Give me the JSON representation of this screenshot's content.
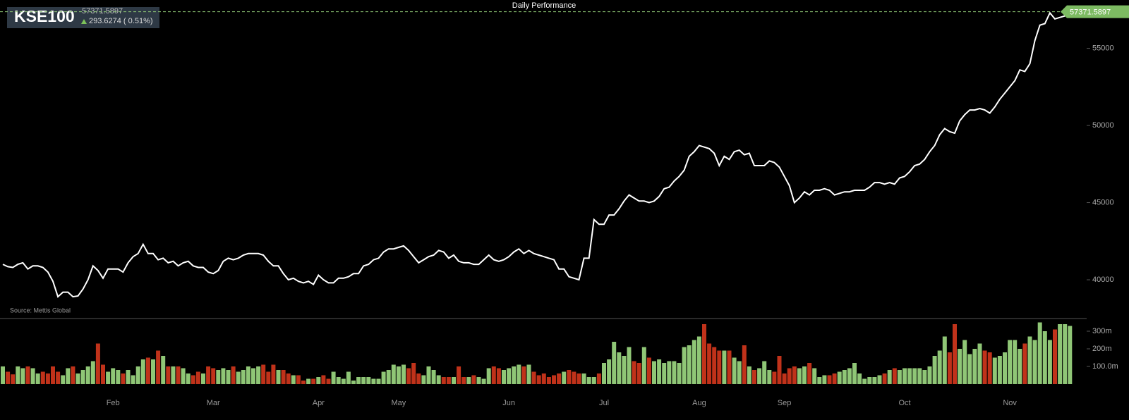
{
  "chart_data": {
    "type": "line",
    "title": "Daily Performance",
    "change_label": "293.6274 ( 0.51%)",
    "source": "Source: Mettis Global",
    "categories": [
      null,
      null,
      null,
      null,
      null,
      null,
      null,
      null,
      null,
      null,
      null,
      null,
      null,
      null,
      null,
      null,
      null,
      null,
      null,
      null,
      null,
      null,
      "Feb",
      null,
      null,
      null,
      null,
      null,
      null,
      null,
      null,
      null,
      null,
      null,
      null,
      null,
      null,
      null,
      null,
      null,
      null,
      null,
      "Mar",
      null,
      null,
      null,
      null,
      null,
      null,
      null,
      null,
      null,
      null,
      null,
      null,
      null,
      null,
      null,
      null,
      null,
      null,
      null,
      null,
      "Apr",
      null,
      null,
      null,
      null,
      null,
      null,
      null,
      null,
      null,
      null,
      null,
      null,
      null,
      null,
      null,
      "May",
      null,
      null,
      null,
      null,
      null,
      null,
      null,
      null,
      null,
      null,
      null,
      null,
      null,
      null,
      null,
      null,
      null,
      null,
      null,
      null,
      null,
      "Jun",
      null,
      null,
      null,
      null,
      null,
      null,
      null,
      null,
      null,
      null,
      null,
      null,
      null,
      null,
      null,
      null,
      null,
      null,
      "Jul",
      null,
      null,
      null,
      null,
      null,
      null,
      null,
      null,
      null,
      null,
      null,
      null,
      null,
      null,
      null,
      null,
      null,
      null,
      "Aug",
      null,
      null,
      null,
      null,
      null,
      null,
      null,
      null,
      null,
      null,
      null,
      null,
      null,
      null,
      null,
      null,
      "Sep",
      null,
      null,
      null,
      null,
      null,
      null,
      null,
      null,
      null,
      null,
      null,
      null,
      null,
      null,
      null,
      null,
      null,
      null,
      null,
      null,
      null,
      null,
      null,
      "Oct",
      null,
      null,
      null,
      null,
      null,
      null,
      null,
      null,
      null,
      null,
      null,
      null,
      null,
      null,
      null,
      null,
      null,
      null,
      null,
      null,
      "Nov",
      null,
      null,
      null,
      null,
      null,
      null,
      null,
      null,
      null,
      null,
      null,
      null
    ],
    "series": [
      {
        "name": "KSE100",
        "color": "#ffffff",
        "values": [
          41000,
          40850,
          40800,
          41000,
          41100,
          40700,
          40900,
          40900,
          40800,
          40500,
          39900,
          38900,
          39200,
          39200,
          38900,
          38950,
          39400,
          40000,
          40900,
          40600,
          40100,
          40700,
          40700,
          40700,
          40500,
          41100,
          41500,
          41700,
          42300,
          41700,
          41700,
          41300,
          41400,
          41100,
          41200,
          40900,
          41100,
          41200,
          40900,
          40800,
          40800,
          40500,
          40400,
          40600,
          41200,
          41400,
          41300,
          41400,
          41600,
          41700,
          41700,
          41700,
          41600,
          41200,
          40900,
          40900,
          40400,
          40000,
          40100,
          39900,
          39800,
          39900,
          39700,
          40300,
          40000,
          39800,
          39800,
          40100,
          40100,
          40200,
          40400,
          40400,
          40900,
          41000,
          41300,
          41400,
          41800,
          42000,
          42000,
          42100,
          42200,
          41900,
          41500,
          41100,
          41300,
          41500,
          41600,
          41900,
          41800,
          41400,
          41600,
          41200,
          41100,
          41100,
          41000,
          41000,
          41300,
          41600,
          41300,
          41200,
          41300,
          41500,
          41800,
          42000,
          41700,
          41900,
          41700,
          41600,
          41500,
          41400,
          41300,
          40700,
          40700,
          40200,
          40100,
          40000,
          41400,
          41400,
          43900,
          43600,
          43600,
          44200,
          44200,
          44600,
          45100,
          45500,
          45300,
          45100,
          45100,
          45000,
          45100,
          45400,
          45900,
          46000,
          46400,
          46700,
          47100,
          48000,
          48300,
          48700,
          48600,
          48500,
          48200,
          47400,
          48000,
          47800,
          48300,
          48400,
          48100,
          48200,
          47400,
          47400,
          47400,
          47700,
          47600,
          47300,
          46700,
          46100,
          45000,
          45300,
          45700,
          45500,
          45800,
          45800,
          45900,
          45800,
          45500,
          45600,
          45700,
          45700,
          45800,
          45800,
          45800,
          46000,
          46300,
          46300,
          46200,
          46300,
          46200,
          46600,
          46700,
          47000,
          47400,
          47500,
          47800,
          48300,
          48700,
          49400,
          49800,
          49600,
          49500,
          50300,
          50700,
          51000,
          51000,
          51100,
          51000,
          50800,
          51200,
          51700,
          52100,
          52500,
          52900,
          53600,
          53500,
          54000,
          55500,
          56500,
          56600,
          57300,
          56900,
          57000,
          57100,
          57371.5897
        ]
      }
    ],
    "ylim": [
      37490,
      58130
    ],
    "yticks": [
      40000,
      45000,
      50000,
      55000
    ],
    "volume": {
      "up_color": "#8fc676",
      "down_color": "#c0321a",
      "ylim": [
        0,
        372
      ],
      "yticks": [
        {
          "value": 100,
          "label": "100.0m"
        },
        {
          "value": 200,
          "label": "200m"
        },
        {
          "value": 300,
          "label": "300m"
        }
      ],
      "values": [
        100,
        70,
        55,
        100,
        90,
        100,
        90,
        60,
        70,
        60,
        100,
        70,
        50,
        90,
        100,
        60,
        80,
        100,
        130,
        230,
        110,
        70,
        90,
        80,
        60,
        80,
        50,
        100,
        140,
        150,
        140,
        190,
        160,
        100,
        100,
        100,
        90,
        60,
        50,
        70,
        60,
        100,
        90,
        80,
        90,
        80,
        100,
        70,
        80,
        100,
        90,
        100,
        110,
        70,
        110,
        80,
        80,
        60,
        50,
        50,
        20,
        30,
        30,
        40,
        50,
        30,
        70,
        40,
        30,
        70,
        20,
        40,
        40,
        40,
        30,
        30,
        70,
        80,
        110,
        100,
        110,
        90,
        120,
        60,
        50,
        100,
        80,
        50,
        40,
        40,
        40,
        100,
        40,
        40,
        50,
        40,
        30,
        90,
        100,
        90,
        80,
        90,
        100,
        110,
        100,
        110,
        70,
        50,
        60,
        40,
        50,
        60,
        70,
        80,
        70,
        60,
        60,
        40,
        40,
        60,
        120,
        140,
        240,
        180,
        160,
        210,
        130,
        120,
        210,
        150,
        130,
        140,
        120,
        130,
        130,
        120,
        210,
        220,
        250,
        270,
        340,
        230,
        210,
        190,
        190,
        190,
        150,
        130,
        220,
        100,
        80,
        90,
        130,
        80,
        70,
        160,
        60,
        90,
        100,
        90,
        100,
        120,
        90,
        40,
        50,
        50,
        60,
        70,
        80,
        90,
        120,
        60,
        30,
        40,
        40,
        50,
        60,
        80,
        90,
        80,
        90,
        90,
        90,
        90,
        80,
        100,
        160,
        190,
        270,
        180,
        340,
        200,
        250,
        170,
        200,
        230,
        190,
        180,
        150,
        160,
        180,
        250,
        250,
        200,
        230,
        270,
        250,
        350,
        300,
        250,
        310,
        340,
        340,
        330
      ]
    }
  }
}
